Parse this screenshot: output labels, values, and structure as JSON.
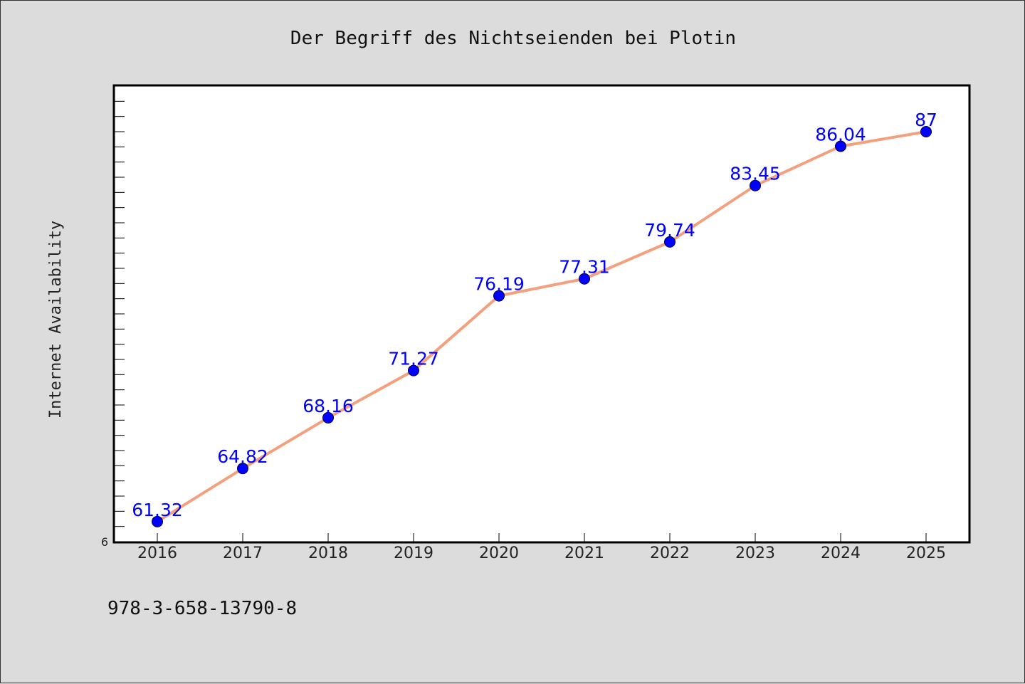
{
  "chart_data": {
    "type": "line",
    "title": "Der Begriff des Nichtseienden bei Plotin",
    "xlabel": "",
    "ylabel": "Internet Availability",
    "categories": [
      "2016",
      "2017",
      "2018",
      "2019",
      "2020",
      "2021",
      "2022",
      "2023",
      "2024",
      "2025"
    ],
    "series": [
      {
        "values": [
          61.32,
          64.82,
          68.16,
          71.27,
          76.19,
          77.31,
          79.74,
          83.45,
          86.04,
          87
        ]
      }
    ],
    "data_labels": [
      "61.32",
      "64.82",
      "68.16",
      "71.27",
      "76.19",
      "77.31",
      "79.74",
      "83.45",
      "86.04",
      "87"
    ],
    "y_tick_labels": [
      "6"
    ],
    "ylim": [
      60,
      90
    ],
    "grid": false,
    "legend": "none",
    "line_color": "#f4a07f",
    "marker_color": "#0000ff",
    "label_color": "#0000ff",
    "plot_background": "#ffffff",
    "page_background": "#dcdcdc"
  },
  "footer": {
    "isbn": "978-3-658-13790-8"
  }
}
